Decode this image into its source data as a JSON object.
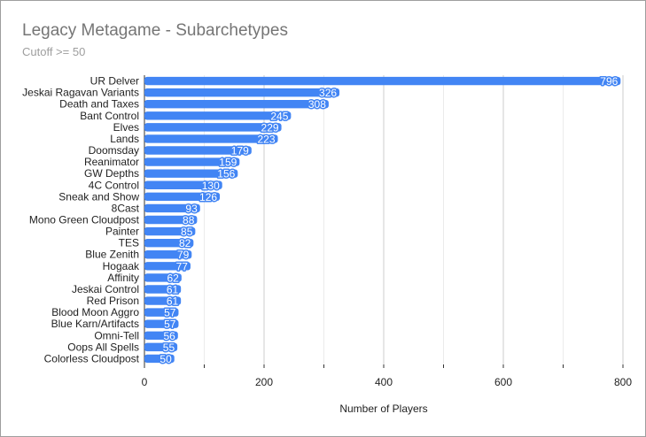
{
  "chart_data": {
    "type": "bar",
    "orientation": "horizontal",
    "title": "Legacy Metagame - Subarchetypes",
    "subtitle": "Cutoff >= 50",
    "xlabel": "Number of Players",
    "ylabel": "",
    "xlim": [
      0,
      800
    ],
    "x_ticks": [
      "0",
      "200",
      "400",
      "600",
      "800"
    ],
    "grid": true,
    "legend": "none",
    "bar_color": "#4285f4",
    "categories": [
      "UR Delver",
      "Jeskai Ragavan Variants",
      "Death and Taxes",
      "Bant Control",
      "Elves",
      "Lands",
      "Doomsday",
      "Reanimator",
      "GW Depths",
      "4C Control",
      "Sneak and Show",
      "8Cast",
      "Mono Green Cloudpost",
      "Painter",
      "TES",
      "Blue Zenith",
      "Hogaak",
      "Affinity",
      "Jeskai Control",
      "Red Prison",
      "Blood Moon Aggro",
      "Blue Karn/Artifacts",
      "Omni-Tell",
      "Oops All Spells",
      "Colorless Cloudpost"
    ],
    "values": [
      796,
      326,
      308,
      245,
      229,
      223,
      179,
      159,
      156,
      130,
      126,
      93,
      88,
      85,
      82,
      79,
      77,
      62,
      61,
      61,
      57,
      57,
      56,
      55,
      50
    ]
  }
}
